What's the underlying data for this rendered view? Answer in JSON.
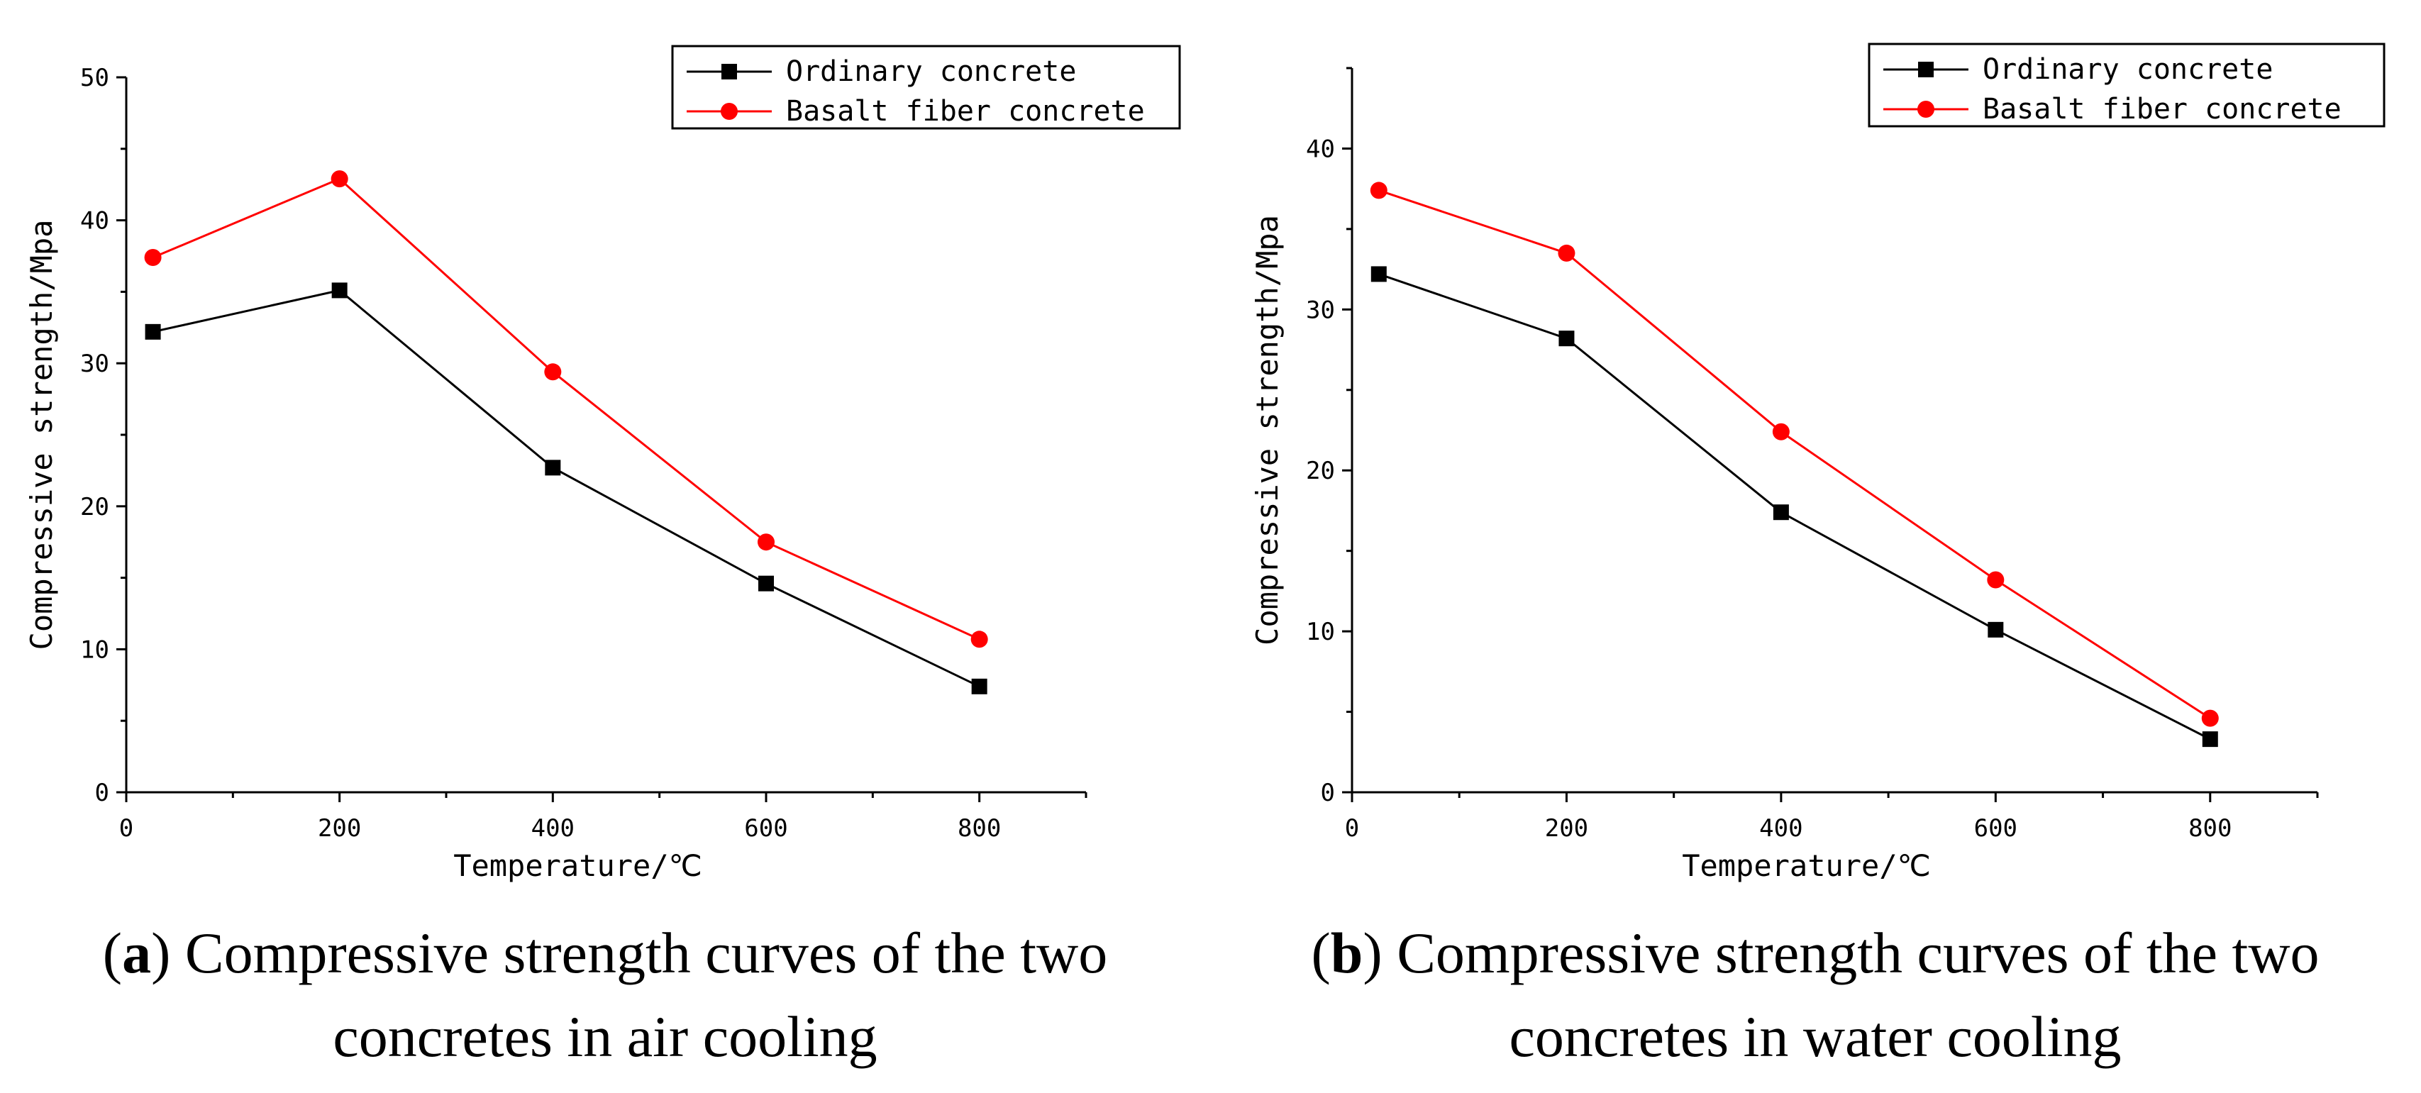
{
  "figure": {
    "panels": [
      {
        "letter": "a",
        "caption": "Compressive strength curves of the two concretes in air cooling"
      },
      {
        "letter": "b",
        "caption": "Compressive strength curves of the two concretes in water cooling"
      }
    ]
  },
  "chart_data": [
    {
      "type": "line",
      "title": "",
      "xlabel": "Temperature/℃",
      "ylabel": "Compressive strength/Mpa",
      "xlim": [
        0,
        900
      ],
      "ylim": [
        0,
        50
      ],
      "xticks": [
        0,
        200,
        400,
        600,
        800
      ],
      "yticks": [
        0,
        10,
        20,
        30,
        40,
        50
      ],
      "grid": false,
      "legend_position": "top-right",
      "series": [
        {
          "name": "Ordinary concrete",
          "color": "#000000",
          "marker": "square",
          "x": [
            25,
            200,
            400,
            600,
            800
          ],
          "y": [
            32.2,
            35.1,
            22.7,
            14.6,
            7.4
          ]
        },
        {
          "name": "Basalt fiber concrete",
          "color": "#ff0000",
          "marker": "circle",
          "x": [
            25,
            200,
            400,
            600,
            800
          ],
          "y": [
            37.4,
            42.9,
            29.4,
            17.5,
            10.7
          ]
        }
      ]
    },
    {
      "type": "line",
      "title": "",
      "xlabel": "Temperature/℃",
      "ylabel": "Compressive strength/Mpa",
      "xlim": [
        0,
        900
      ],
      "ylim": [
        0,
        45
      ],
      "xticks": [
        0,
        200,
        400,
        600,
        800
      ],
      "yticks": [
        0,
        10,
        20,
        30,
        40
      ],
      "grid": false,
      "legend_position": "top-right",
      "series": [
        {
          "name": "Ordinary concrete",
          "color": "#000000",
          "marker": "square",
          "x": [
            25,
            200,
            400,
            600,
            800
          ],
          "y": [
            32.2,
            28.2,
            17.4,
            10.1,
            3.3
          ]
        },
        {
          "name": "Basalt fiber concrete",
          "color": "#ff0000",
          "marker": "circle",
          "x": [
            25,
            200,
            400,
            600,
            800
          ],
          "y": [
            37.4,
            33.5,
            22.4,
            13.2,
            4.6
          ]
        }
      ]
    }
  ]
}
